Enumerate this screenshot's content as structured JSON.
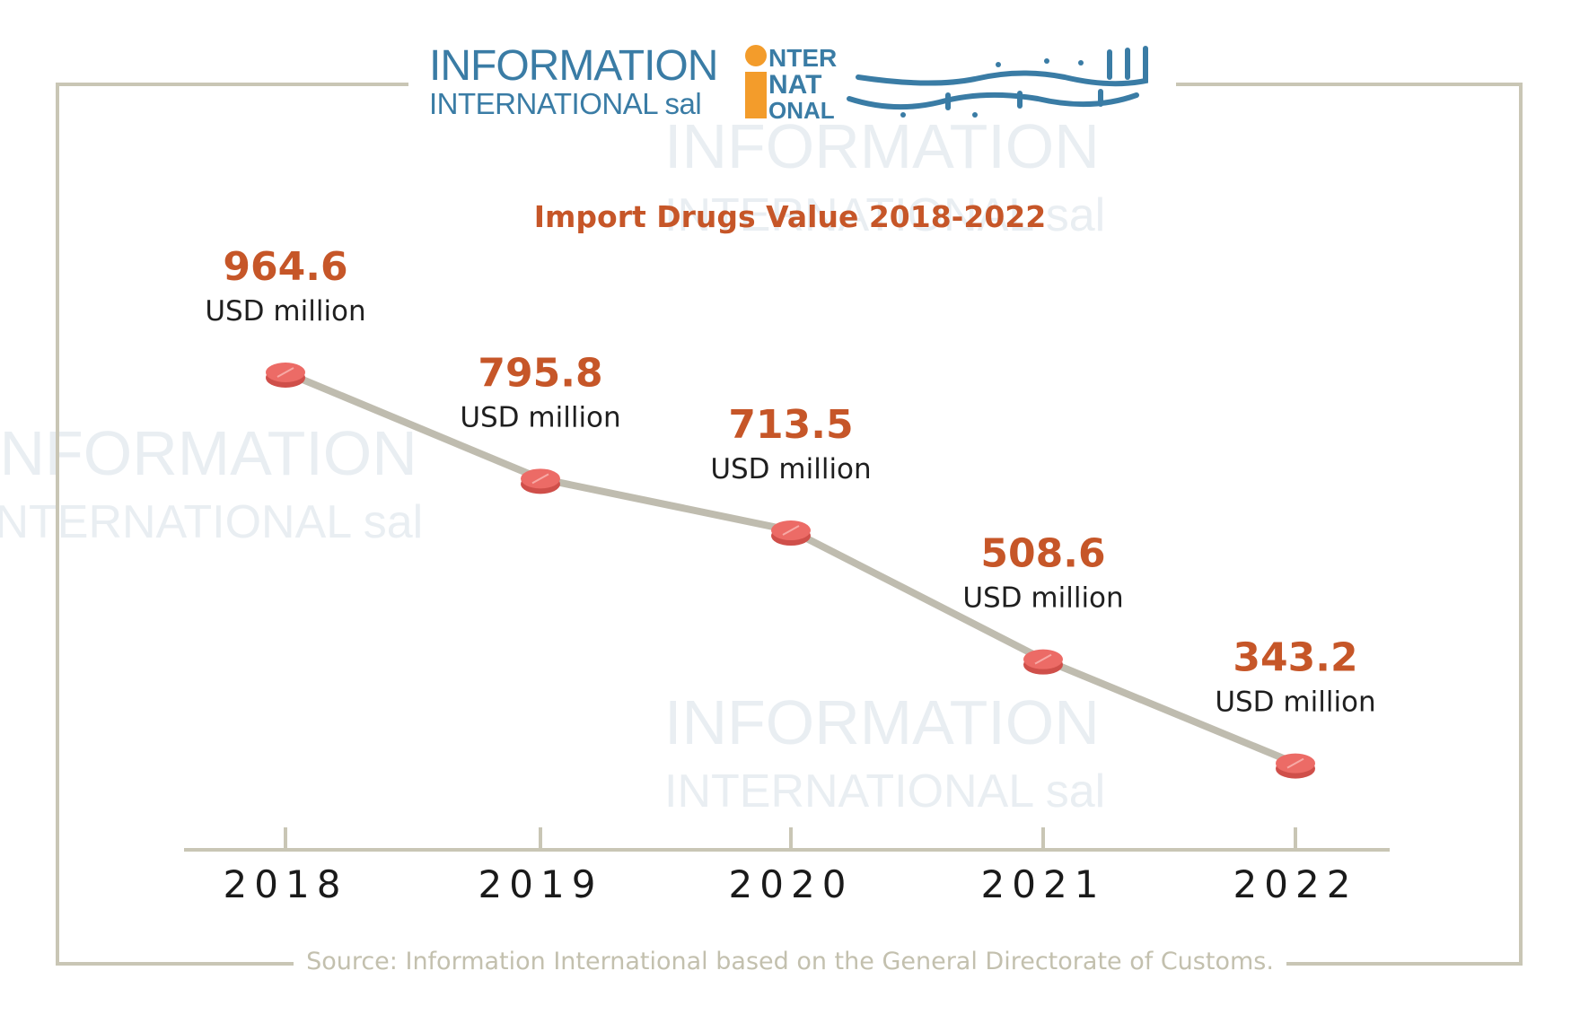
{
  "logo": {
    "line1": "INFORMATION",
    "line2": "INTERNATIONAL sal",
    "mark_letters": [
      "NTER",
      "NAT",
      "ONAL"
    ]
  },
  "colors": {
    "accent": "#c65628",
    "line": "#bfbcaf",
    "pill": "#ec6b66",
    "brand_blue": "#3a7ca5",
    "brand_orange": "#f39c2b"
  },
  "chart_data": {
    "type": "line",
    "title": "Import Drugs Value 2018-2022",
    "categories": [
      "2018",
      "2019",
      "2020",
      "2021",
      "2022"
    ],
    "values": [
      964.6,
      795.8,
      713.5,
      508.6,
      343.2
    ],
    "value_labels": [
      "964.6",
      "795.8",
      "713.5",
      "508.6",
      "343.2"
    ],
    "unit_label": "USD million",
    "xlabel": "",
    "ylabel": "",
    "grid": false,
    "legend": "none"
  },
  "source": "Source: Information International based on the General Directorate of Customs."
}
